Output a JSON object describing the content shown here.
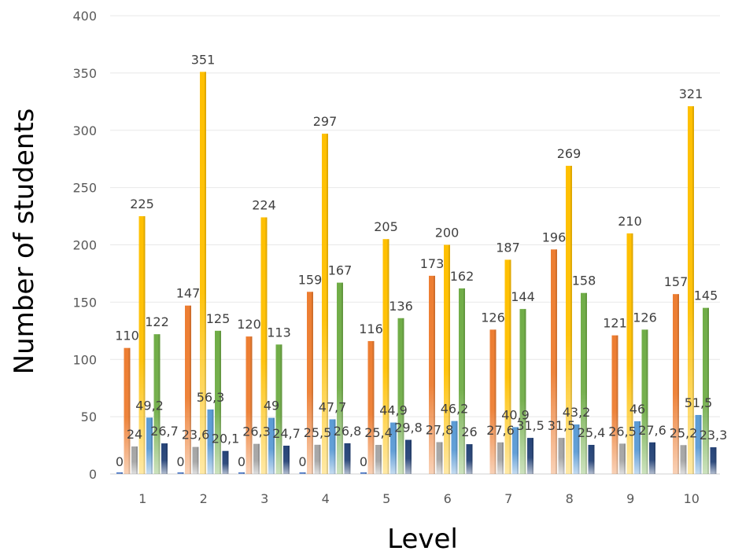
{
  "chart_data": {
    "type": "bar",
    "title": "",
    "xlabel": "Level",
    "ylabel": "Number of students",
    "ylim": [
      0,
      400
    ],
    "yticks": [
      "0",
      "50",
      "100",
      "150",
      "200",
      "250",
      "300",
      "350",
      "400"
    ],
    "grid": true,
    "categories": [
      "1",
      "2",
      "3",
      "4",
      "5",
      "6",
      "7",
      "8",
      "9",
      "10"
    ],
    "series": [
      {
        "values": [
          0,
          0,
          0,
          0,
          0,
          null,
          null,
          null,
          null,
          null
        ],
        "labels": [
          "0",
          "0",
          "0",
          "0",
          "0",
          "",
          "",
          "",
          "",
          ""
        ],
        "color": "#4472C4"
      },
      {
        "values": [
          110,
          147,
          120,
          159,
          116,
          173,
          126,
          196,
          121,
          157
        ],
        "labels": [
          "110",
          "147",
          "120",
          "159",
          "116",
          "173",
          "126",
          "196",
          "121",
          "157"
        ],
        "color": "#ED7D31"
      },
      {
        "values": [
          24,
          23.6,
          26.3,
          25.5,
          25.4,
          27.8,
          27.6,
          31.5,
          26.5,
          25.2
        ],
        "labels": [
          "24",
          "23,6",
          "26,3",
          "25,5",
          "25,4",
          "27,8",
          "27,6",
          "31,5",
          "26,5",
          "25,2"
        ],
        "color": "#A5A5A5"
      },
      {
        "values": [
          225,
          351,
          224,
          297,
          205,
          200,
          187,
          269,
          210,
          321
        ],
        "labels": [
          "225",
          "351",
          "224",
          "297",
          "205",
          "200",
          "187",
          "269",
          "210",
          "321"
        ],
        "color": "#FFC000"
      },
      {
        "values": [
          49.2,
          56.3,
          49,
          47.7,
          44.9,
          46.2,
          40.9,
          43.2,
          46,
          51.5
        ],
        "labels": [
          "49,2",
          "56,3",
          "49",
          "47,7",
          "44,9",
          "46,2",
          "40,9",
          "43,2",
          "46",
          "51,5"
        ],
        "color": "#5B9BD5"
      },
      {
        "values": [
          122,
          125,
          113,
          167,
          136,
          162,
          144,
          158,
          126,
          145
        ],
        "labels": [
          "122",
          "125",
          "113",
          "167",
          "136",
          "162",
          "144",
          "158",
          "126",
          "145"
        ],
        "color": "#70AD47"
      },
      {
        "values": [
          26.7,
          20.1,
          24.7,
          26.8,
          29.8,
          26,
          31.5,
          25.4,
          27.6,
          23.3
        ],
        "labels": [
          "26,7",
          "20,1",
          "24,7",
          "26,8",
          "29,8",
          "26",
          "31,5",
          "25,4",
          "27,6",
          "23,3"
        ],
        "color": "#264478"
      }
    ]
  }
}
